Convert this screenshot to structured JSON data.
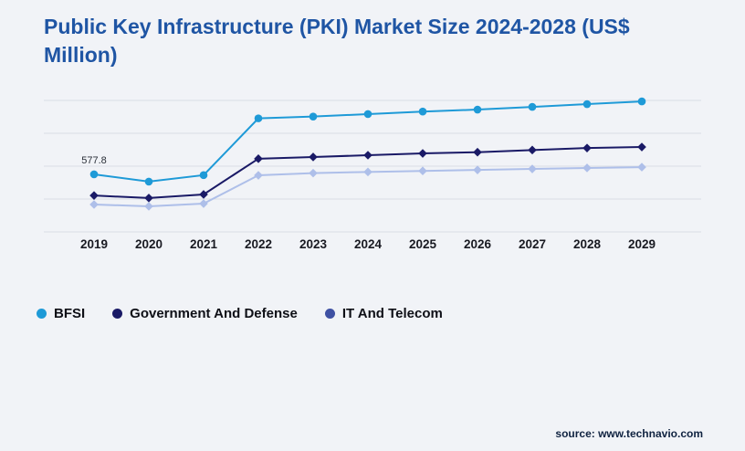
{
  "title": "Public Key Infrastructure (PKI) Market Size 2024-2028 (US$ Million)",
  "source": {
    "label": "source: www.technavio.com"
  },
  "colors": {
    "background": "#f1f3f7",
    "title": "#1f55a4",
    "grid": "#d9dce4",
    "tick": "#191a22",
    "legend_text": "#0e0f16",
    "source_text": "#0f2240"
  },
  "chart_data": {
    "type": "line",
    "title": "Public Key Infrastructure (PKI) Market Size 2024-2028 (US$ Million)",
    "categories": [
      "2019",
      "2020",
      "2021",
      "2022",
      "2023",
      "2024",
      "2025",
      "2026",
      "2027",
      "2028",
      "2029"
    ],
    "series": [
      {
        "name": "BFSI",
        "color": "#1e9ad7",
        "legend_dot": "#1e9ad7",
        "marker": "circle",
        "values": [
          577.8,
          505,
          570,
          1140,
          1158,
          1183,
          1208,
          1228,
          1255,
          1283,
          1310
        ]
      },
      {
        "name": "Government And Defense",
        "color": "#1a1a66",
        "legend_dot": "#1a1a66",
        "marker": "diamond",
        "values": [
          365,
          340,
          376,
          735,
          752,
          770,
          788,
          800,
          822,
          842,
          852
        ]
      },
      {
        "name": "IT And Telecom",
        "color": "#aebfe9",
        "legend_dot": "#3f51a3",
        "marker": "diamond",
        "values": [
          275,
          257,
          284,
          568,
          590,
          602,
          612,
          622,
          632,
          642,
          650
        ]
      }
    ],
    "annotations": [
      {
        "series": "BFSI",
        "category": "2019",
        "label": "577.8"
      }
    ],
    "ylim": [
      0,
      1320
    ],
    "grid": true,
    "gridline_count": 5,
    "legend_position": "bottom-left",
    "xlabel": "",
    "ylabel": ""
  }
}
